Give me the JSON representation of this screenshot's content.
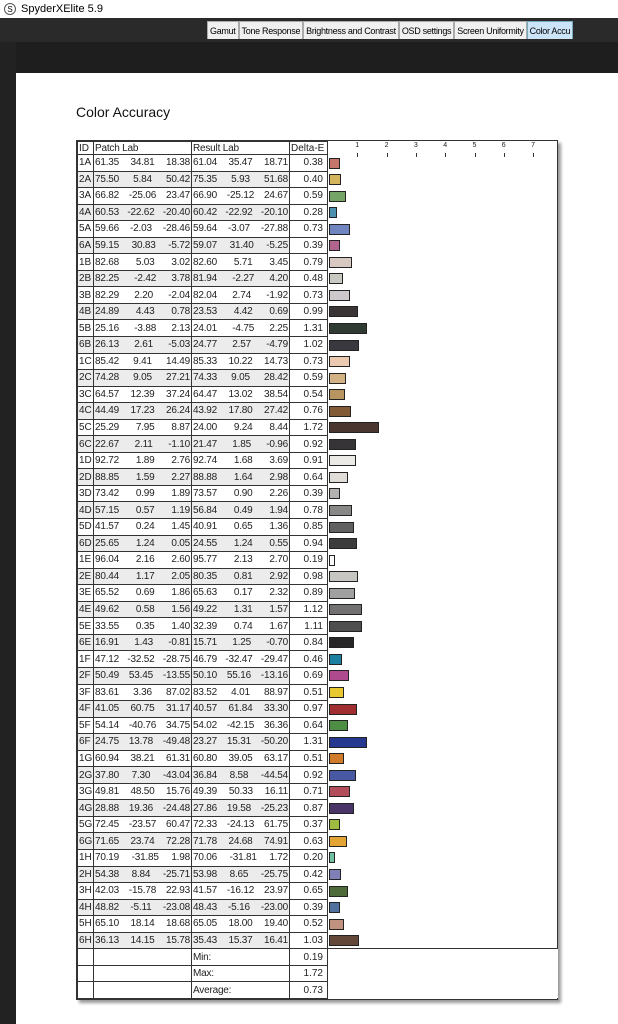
{
  "window": {
    "title": "SpyderXElite 5.9",
    "app_icon": "S"
  },
  "tabs": [
    {
      "label": "Gamut"
    },
    {
      "label": "Tone Response"
    },
    {
      "label": "Brightness and Contrast"
    },
    {
      "label": "OSD settings"
    },
    {
      "label": "Screen Uniformity"
    },
    {
      "label": "Color Accu",
      "active": true
    }
  ],
  "report": {
    "title": "Color Accuracy",
    "headers": {
      "id": "ID",
      "patch": "Patch Lab",
      "result": "Result Lab",
      "delta": "Delta-E"
    },
    "axis_ticks": [
      "1",
      "2",
      "3",
      "4",
      "5",
      "6",
      "7"
    ],
    "rows": [
      [
        "1A",
        "61.35",
        "34.81",
        "18.38",
        "61.04",
        "35.47",
        "18.71",
        "0.38",
        "#c4766a"
      ],
      [
        "2A",
        "75.50",
        "5.84",
        "50.42",
        "75.35",
        "5.93",
        "51.68",
        "0.40",
        "#d4b45c"
      ],
      [
        "3A",
        "66.82",
        "-25.06",
        "23.47",
        "66.90",
        "-25.12",
        "24.67",
        "0.59",
        "#74a466"
      ],
      [
        "4A",
        "60.53",
        "-22.62",
        "-20.40",
        "60.42",
        "-22.92",
        "-20.10",
        "0.28",
        "#4c90b0"
      ],
      [
        "5A",
        "59.66",
        "-2.03",
        "-28.46",
        "59.64",
        "-3.07",
        "-27.88",
        "0.73",
        "#7084c0"
      ],
      [
        "6A",
        "59.15",
        "30.83",
        "-5.72",
        "59.07",
        "31.40",
        "-5.25",
        "0.39",
        "#b0648e"
      ],
      [
        "1B",
        "82.68",
        "5.03",
        "3.02",
        "82.60",
        "5.71",
        "3.45",
        "0.79",
        "#d8c8c2"
      ],
      [
        "2B",
        "82.25",
        "-2.42",
        "3.78",
        "81.94",
        "-2.27",
        "4.20",
        "0.48",
        "#c8cac2"
      ],
      [
        "3B",
        "82.29",
        "2.20",
        "-2.04",
        "82.04",
        "2.74",
        "-1.92",
        "0.73",
        "#ccc8cc"
      ],
      [
        "4B",
        "24.89",
        "4.43",
        "0.78",
        "23.53",
        "4.42",
        "0.69",
        "0.99",
        "#3a3434"
      ],
      [
        "5B",
        "25.16",
        "-3.88",
        "2.13",
        "24.01",
        "-4.75",
        "2.25",
        "1.31",
        "#2e3a32"
      ],
      [
        "6B",
        "26.13",
        "2.61",
        "-5.03",
        "24.77",
        "2.57",
        "-4.79",
        "1.02",
        "#38383e"
      ],
      [
        "1C",
        "85.42",
        "9.41",
        "14.49",
        "85.33",
        "10.22",
        "14.73",
        "0.73",
        "#eccab2"
      ],
      [
        "2C",
        "74.28",
        "9.05",
        "27.21",
        "74.33",
        "9.05",
        "28.42",
        "0.59",
        "#d2b284"
      ],
      [
        "3C",
        "64.57",
        "12.39",
        "37.24",
        "64.47",
        "13.02",
        "38.54",
        "0.54",
        "#b89460"
      ],
      [
        "4C",
        "44.49",
        "17.23",
        "26.24",
        "43.92",
        "17.80",
        "27.42",
        "0.76",
        "#825a36"
      ],
      [
        "5C",
        "25.29",
        "7.95",
        "8.87",
        "24.00",
        "9.24",
        "8.44",
        "1.72",
        "#4a3630"
      ],
      [
        "6C",
        "22.67",
        "2.11",
        "-1.10",
        "21.47",
        "1.85",
        "-0.96",
        "0.92",
        "#363436"
      ],
      [
        "1D",
        "92.72",
        "1.89",
        "2.76",
        "92.74",
        "1.68",
        "3.69",
        "0.91",
        "#eceae6"
      ],
      [
        "2D",
        "88.85",
        "1.59",
        "2.27",
        "88.88",
        "1.64",
        "2.98",
        "0.64",
        "#e0dcd8"
      ],
      [
        "3D",
        "73.42",
        "0.99",
        "1.89",
        "73.57",
        "0.90",
        "2.26",
        "0.39",
        "#b4b2b0"
      ],
      [
        "4D",
        "57.15",
        "0.57",
        "1.19",
        "56.84",
        "0.49",
        "1.94",
        "0.78",
        "#888886"
      ],
      [
        "5D",
        "41.57",
        "0.24",
        "1.45",
        "40.91",
        "0.65",
        "1.36",
        "0.85",
        "#606060"
      ],
      [
        "6D",
        "25.65",
        "1.24",
        "0.05",
        "24.55",
        "1.24",
        "0.55",
        "0.94",
        "#3c3c3c"
      ],
      [
        "1E",
        "96.04",
        "2.16",
        "2.60",
        "95.77",
        "2.13",
        "2.70",
        "0.19",
        "#fafafa"
      ],
      [
        "2E",
        "80.44",
        "1.17",
        "2.05",
        "80.35",
        "0.81",
        "2.92",
        "0.98",
        "#c8c6c2"
      ],
      [
        "3E",
        "65.52",
        "0.69",
        "1.86",
        "65.63",
        "0.17",
        "2.32",
        "0.89",
        "#a0a0a0"
      ],
      [
        "4E",
        "49.62",
        "0.58",
        "1.56",
        "49.22",
        "1.31",
        "1.57",
        "1.12",
        "#727070"
      ],
      [
        "5E",
        "33.55",
        "0.35",
        "1.40",
        "32.39",
        "0.74",
        "1.67",
        "1.11",
        "#4e4e4e"
      ],
      [
        "6E",
        "16.91",
        "1.43",
        "-0.81",
        "15.71",
        "1.25",
        "-0.70",
        "0.84",
        "#262626"
      ],
      [
        "1F",
        "47.12",
        "-32.52",
        "-28.75",
        "46.79",
        "-32.47",
        "-29.47",
        "0.46",
        "#1e80a0"
      ],
      [
        "2F",
        "50.49",
        "53.45",
        "-13.55",
        "50.10",
        "55.16",
        "-13.16",
        "0.69",
        "#b04a8e"
      ],
      [
        "3F",
        "83.61",
        "3.36",
        "87.02",
        "83.52",
        "4.01",
        "88.97",
        "0.51",
        "#e8c830"
      ],
      [
        "4F",
        "41.05",
        "60.75",
        "31.17",
        "40.57",
        "61.84",
        "33.30",
        "0.97",
        "#a02e30"
      ],
      [
        "5F",
        "54.14",
        "-40.76",
        "34.75",
        "54.02",
        "-42.15",
        "36.36",
        "0.64",
        "#4e8e44"
      ],
      [
        "6F",
        "24.75",
        "13.78",
        "-49.48",
        "23.27",
        "15.31",
        "-50.20",
        "1.31",
        "#263890"
      ],
      [
        "1G",
        "60.94",
        "38.21",
        "61.31",
        "60.80",
        "39.05",
        "63.17",
        "0.51",
        "#d07a2a"
      ],
      [
        "2G",
        "37.80",
        "7.30",
        "-43.04",
        "36.84",
        "8.58",
        "-44.54",
        "0.92",
        "#4858a2"
      ],
      [
        "3G",
        "49.81",
        "48.50",
        "15.76",
        "49.39",
        "50.33",
        "16.11",
        "0.71",
        "#b24e5c"
      ],
      [
        "4G",
        "28.88",
        "19.36",
        "-24.48",
        "27.86",
        "19.58",
        "-25.23",
        "0.87",
        "#483466"
      ],
      [
        "5G",
        "72.45",
        "-23.57",
        "60.47",
        "72.33",
        "-24.13",
        "61.75",
        "0.37",
        "#a0bc40"
      ],
      [
        "6G",
        "71.65",
        "23.74",
        "72.28",
        "71.78",
        "24.68",
        "74.91",
        "0.63",
        "#e2a432"
      ],
      [
        "1H",
        "70.19",
        "-31.85",
        "1.98",
        "70.06",
        "-31.81",
        "1.72",
        "0.20",
        "#70c0a2"
      ],
      [
        "2H",
        "54.38",
        "8.84",
        "-25.71",
        "53.98",
        "8.65",
        "-25.75",
        "0.42",
        "#8080b8"
      ],
      [
        "3H",
        "42.03",
        "-15.78",
        "22.93",
        "41.57",
        "-16.12",
        "23.97",
        "0.65",
        "#4e6a38"
      ],
      [
        "4H",
        "48.82",
        "-5.11",
        "-23.08",
        "48.43",
        "-5.16",
        "-23.00",
        "0.39",
        "#50709e"
      ],
      [
        "5H",
        "65.10",
        "18.14",
        "18.68",
        "65.05",
        "18.00",
        "19.40",
        "0.52",
        "#c29280"
      ],
      [
        "6H",
        "36.13",
        "14.15",
        "15.78",
        "35.43",
        "15.37",
        "16.41",
        "1.03",
        "#624838"
      ]
    ],
    "summary": [
      {
        "label": "Min:",
        "value": "0.19"
      },
      {
        "label": "Max:",
        "value": "1.72"
      },
      {
        "label": "Average:",
        "value": "0.73"
      }
    ]
  }
}
